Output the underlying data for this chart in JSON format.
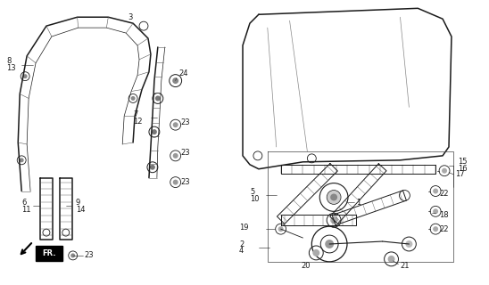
{
  "bg_color": "#ffffff",
  "fig_width": 5.48,
  "fig_height": 3.2,
  "dpi": 100,
  "line_color": "#1a1a1a",
  "hatch_color": "#555555",
  "label_fontsize": 6.0
}
